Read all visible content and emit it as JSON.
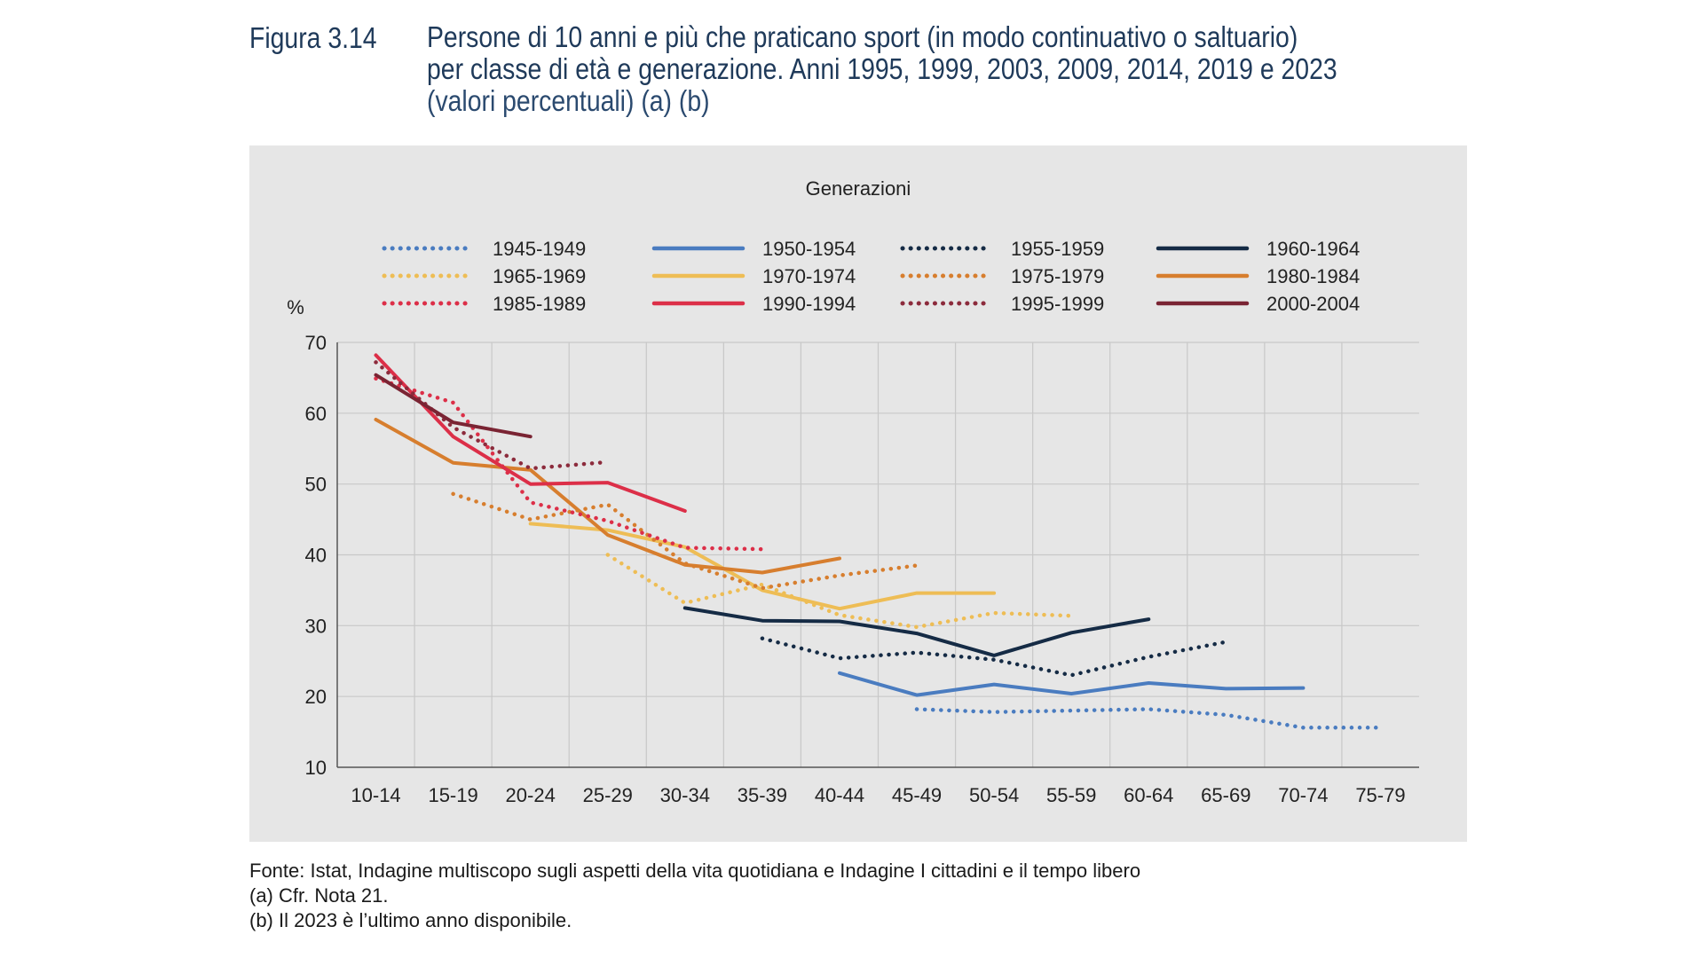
{
  "figure": {
    "label": "Figura 3.14",
    "title_line1": "Persone di 10 anni e più che praticano sport (in modo continuativo o saltuario)",
    "title_line2": "per classe di età e generazione. Anni 1995, 1999, 2003, 2009, 2014, 2019 e 2023",
    "title_line3": "(valori percentuali) (a) (b)"
  },
  "footer": {
    "source": "Fonte: Istat, Indagine multiscopo sugli aspetti della vita quotidiana e Indagine I cittadini e il tempo libero",
    "note_a": "(a) Cfr. Nota 21.",
    "note_b": "(b) Il 2023 è l’ultimo anno disponibile."
  },
  "chart_data": {
    "type": "line",
    "legend_title": "Generazioni",
    "legend_position": "top",
    "ylabel": "%",
    "xlabel": "",
    "ylim": [
      10,
      70
    ],
    "yticks": [
      10,
      20,
      30,
      40,
      50,
      60,
      70
    ],
    "grid": true,
    "categories": [
      "10-14",
      "15-19",
      "20-24",
      "25-29",
      "30-34",
      "35-39",
      "40-44",
      "45-49",
      "50-54",
      "55-59",
      "60-64",
      "65-69",
      "70-74",
      "75-79"
    ],
    "series": [
      {
        "name": "1945-1949",
        "color": "#4a7cc0",
        "style": "dotted",
        "values": [
          null,
          null,
          null,
          null,
          null,
          null,
          null,
          18.2,
          17.8,
          18.0,
          18.2,
          17.4,
          15.6,
          15.6
        ]
      },
      {
        "name": "1950-1954",
        "color": "#4a7cc0",
        "style": "solid",
        "values": [
          null,
          null,
          null,
          null,
          null,
          null,
          23.3,
          20.2,
          21.7,
          20.4,
          21.9,
          21.1,
          21.2,
          null
        ]
      },
      {
        "name": "1955-1959",
        "color": "#152b45",
        "style": "dotted",
        "values": [
          null,
          null,
          null,
          null,
          null,
          28.2,
          25.4,
          26.2,
          25.2,
          23.0,
          25.6,
          27.7,
          null,
          null
        ]
      },
      {
        "name": "1960-1964",
        "color": "#152b45",
        "style": "solid",
        "values": [
          null,
          null,
          null,
          null,
          32.5,
          30.7,
          30.6,
          28.9,
          25.8,
          29.0,
          30.9,
          null,
          null,
          null
        ]
      },
      {
        "name": "1965-1969",
        "color": "#eebd55",
        "style": "dotted",
        "values": [
          null,
          null,
          null,
          40.0,
          33.2,
          35.8,
          31.5,
          29.8,
          31.8,
          31.4,
          null,
          null,
          null,
          null
        ]
      },
      {
        "name": "1970-1974",
        "color": "#eebd55",
        "style": "solid",
        "values": [
          null,
          null,
          44.4,
          43.5,
          41.1,
          35.0,
          32.4,
          34.6,
          34.6,
          null,
          null,
          null,
          null,
          null
        ]
      },
      {
        "name": "1975-1979",
        "color": "#d77e2e",
        "style": "dotted",
        "values": [
          null,
          48.6,
          45.0,
          47.1,
          38.8,
          35.3,
          37.1,
          38.5,
          null,
          null,
          null,
          null,
          null,
          null
        ]
      },
      {
        "name": "1980-1984",
        "color": "#d77e2e",
        "style": "solid",
        "values": [
          59.1,
          53.0,
          52.0,
          42.8,
          38.6,
          37.5,
          39.5,
          null,
          null,
          null,
          null,
          null,
          null,
          null
        ]
      },
      {
        "name": "1985-1989",
        "color": "#dc2f48",
        "style": "dotted",
        "values": [
          64.9,
          61.5,
          47.4,
          44.8,
          41.0,
          40.8,
          null,
          null,
          null,
          null,
          null,
          null,
          null,
          null
        ]
      },
      {
        "name": "1990-1994",
        "color": "#dc2f48",
        "style": "solid",
        "values": [
          68.2,
          56.7,
          50.0,
          50.2,
          46.2,
          null,
          null,
          null,
          null,
          null,
          null,
          null,
          null,
          null
        ]
      },
      {
        "name": "1995-1999",
        "color": "#8c2b3c",
        "style": "dotted",
        "values": [
          67.2,
          58.0,
          52.2,
          53.1,
          null,
          null,
          null,
          null,
          null,
          null,
          null,
          null,
          null,
          null
        ]
      },
      {
        "name": "2000-2004",
        "color": "#7a2433",
        "style": "solid",
        "values": [
          65.4,
          58.7,
          56.7,
          null,
          null,
          null,
          null,
          null,
          null,
          null,
          null,
          null,
          null,
          null
        ]
      }
    ]
  }
}
